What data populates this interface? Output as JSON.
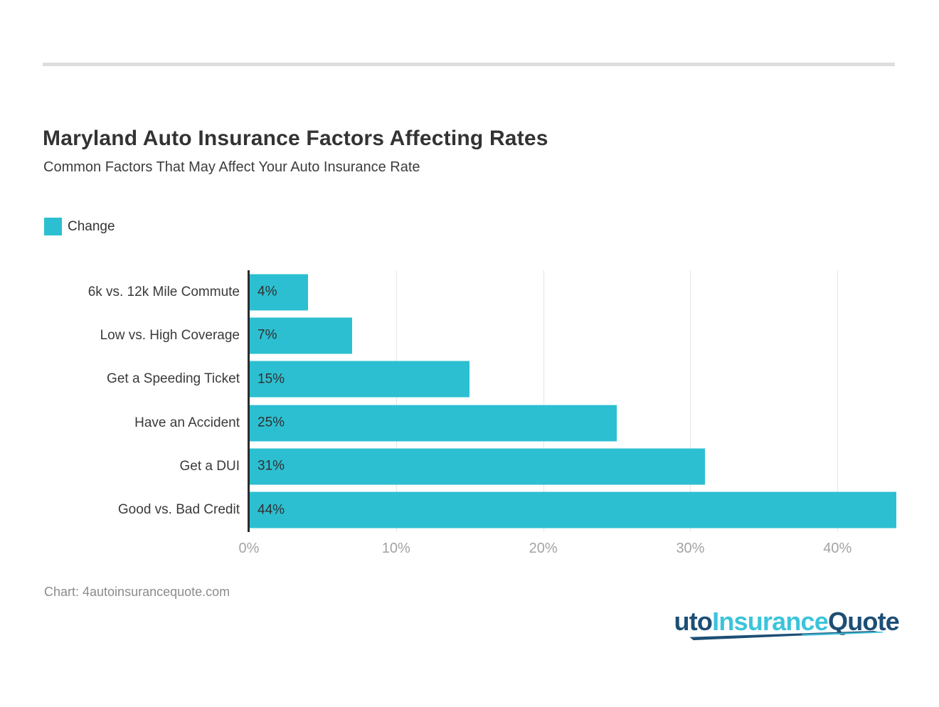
{
  "header": {
    "title": "Maryland Auto Insurance Factors Affecting Rates",
    "subtitle": "Common Factors That May Affect Your Auto Insurance Rate"
  },
  "legend": {
    "label": "Change"
  },
  "chart_data": {
    "type": "bar",
    "orientation": "horizontal",
    "title": "Maryland Auto Insurance Factors Affecting Rates",
    "subtitle": "Common Factors That May Affect Your Auto Insurance Rate",
    "categories": [
      "6k vs. 12k Mile Commute",
      "Low vs. High Coverage",
      "Get a Speeding Ticket",
      "Have an Accident",
      "Get a DUI",
      "Good vs. Bad Credit"
    ],
    "series": [
      {
        "name": "Change",
        "values": [
          4,
          7,
          15,
          25,
          31,
          44
        ]
      }
    ],
    "value_labels": [
      "4%",
      "7%",
      "15%",
      "25%",
      "31%",
      "44%"
    ],
    "x_ticks": [
      "0%",
      "10%",
      "20%",
      "30%",
      "40%"
    ],
    "x_tick_values": [
      0,
      10,
      20,
      30,
      40
    ],
    "xlim": [
      0,
      44
    ],
    "grid": true,
    "legend_position": "top-left"
  },
  "footer": {
    "credit": "Chart: 4autoinsurancequote.com"
  },
  "logo": {
    "part1": "uto",
    "part2": "Insurance",
    "part3": "Quote"
  },
  "colors": {
    "bar": "#2CBFD1",
    "title": "#333333",
    "subtitle": "#3D3D3D",
    "category_label": "#3A3A3A",
    "value_label": "#303030",
    "tick_label": "#A3A3A3",
    "gridline": "#E6E6E6",
    "baseline": "#2B2B2B",
    "divider": "#DEDEDE",
    "footer_text": "#8C8C8C",
    "logo_navy": "#1D4E74",
    "logo_teal": "#3BC4DB"
  }
}
